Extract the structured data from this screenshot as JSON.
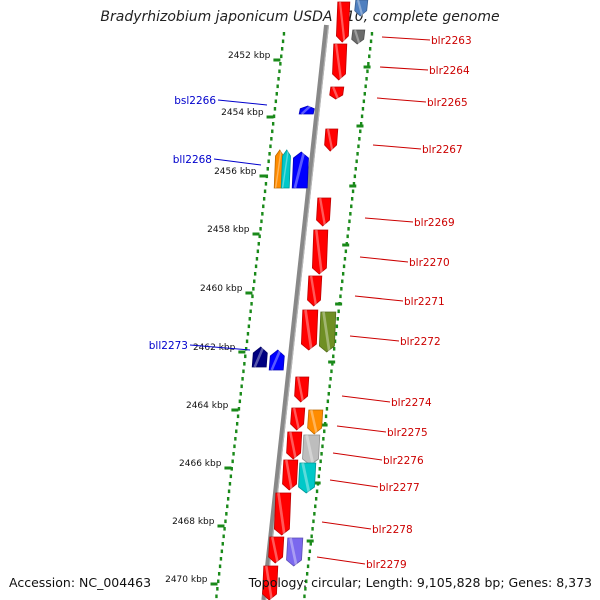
{
  "title": "Bradyrhizobium japonicum USDA 110, complete genome",
  "footer": {
    "accession": "Accession: NC_004463",
    "summary": "Topology: circular; Length: 9,105,828 bp; Genes: 8,373"
  },
  "kbp_marks": [
    "2452 kbp",
    "2454 kbp",
    "2456 kbp",
    "2458 kbp",
    "2460 kbp",
    "2462 kbp",
    "2464 kbp",
    "2466 kbp",
    "2468 kbp",
    "2470 kbp"
  ],
  "right_genes": [
    {
      "id": "blr2263",
      "color": "#ff0000"
    },
    {
      "id": "blr2264",
      "color": "#ff0000"
    },
    {
      "id": "blr2265",
      "color": "#ff0000"
    },
    {
      "id": "blr2267",
      "color": "#ff0000"
    },
    {
      "id": "blr2269",
      "color": "#ff0000"
    },
    {
      "id": "blr2270",
      "color": "#ff0000"
    },
    {
      "id": "blr2271",
      "color": "#ff0000"
    },
    {
      "id": "blr2272",
      "color": "#ff0000"
    },
    {
      "id": "blr2274",
      "color": "#ff0000"
    },
    {
      "id": "blr2275",
      "color": "#ff0000"
    },
    {
      "id": "blr2276",
      "color": "#ff0000"
    },
    {
      "id": "blr2277",
      "color": "#ff0000"
    },
    {
      "id": "blr2278",
      "color": "#ff0000"
    },
    {
      "id": "blr2279",
      "color": "#ff0000"
    }
  ],
  "left_genes": [
    {
      "id": "bsl2266",
      "color": "#0000cc"
    },
    {
      "id": "bll2268",
      "color": "#0000cc"
    },
    {
      "id": "bll2273",
      "color": "#0000cc"
    }
  ],
  "colors": {
    "forward_gene": "#ff0000",
    "reverse_gene": "#0000ff",
    "axis": "#888888",
    "ticks": "#1a8a1a",
    "label_right": "#cc0000",
    "label_left": "#0000cc"
  }
}
